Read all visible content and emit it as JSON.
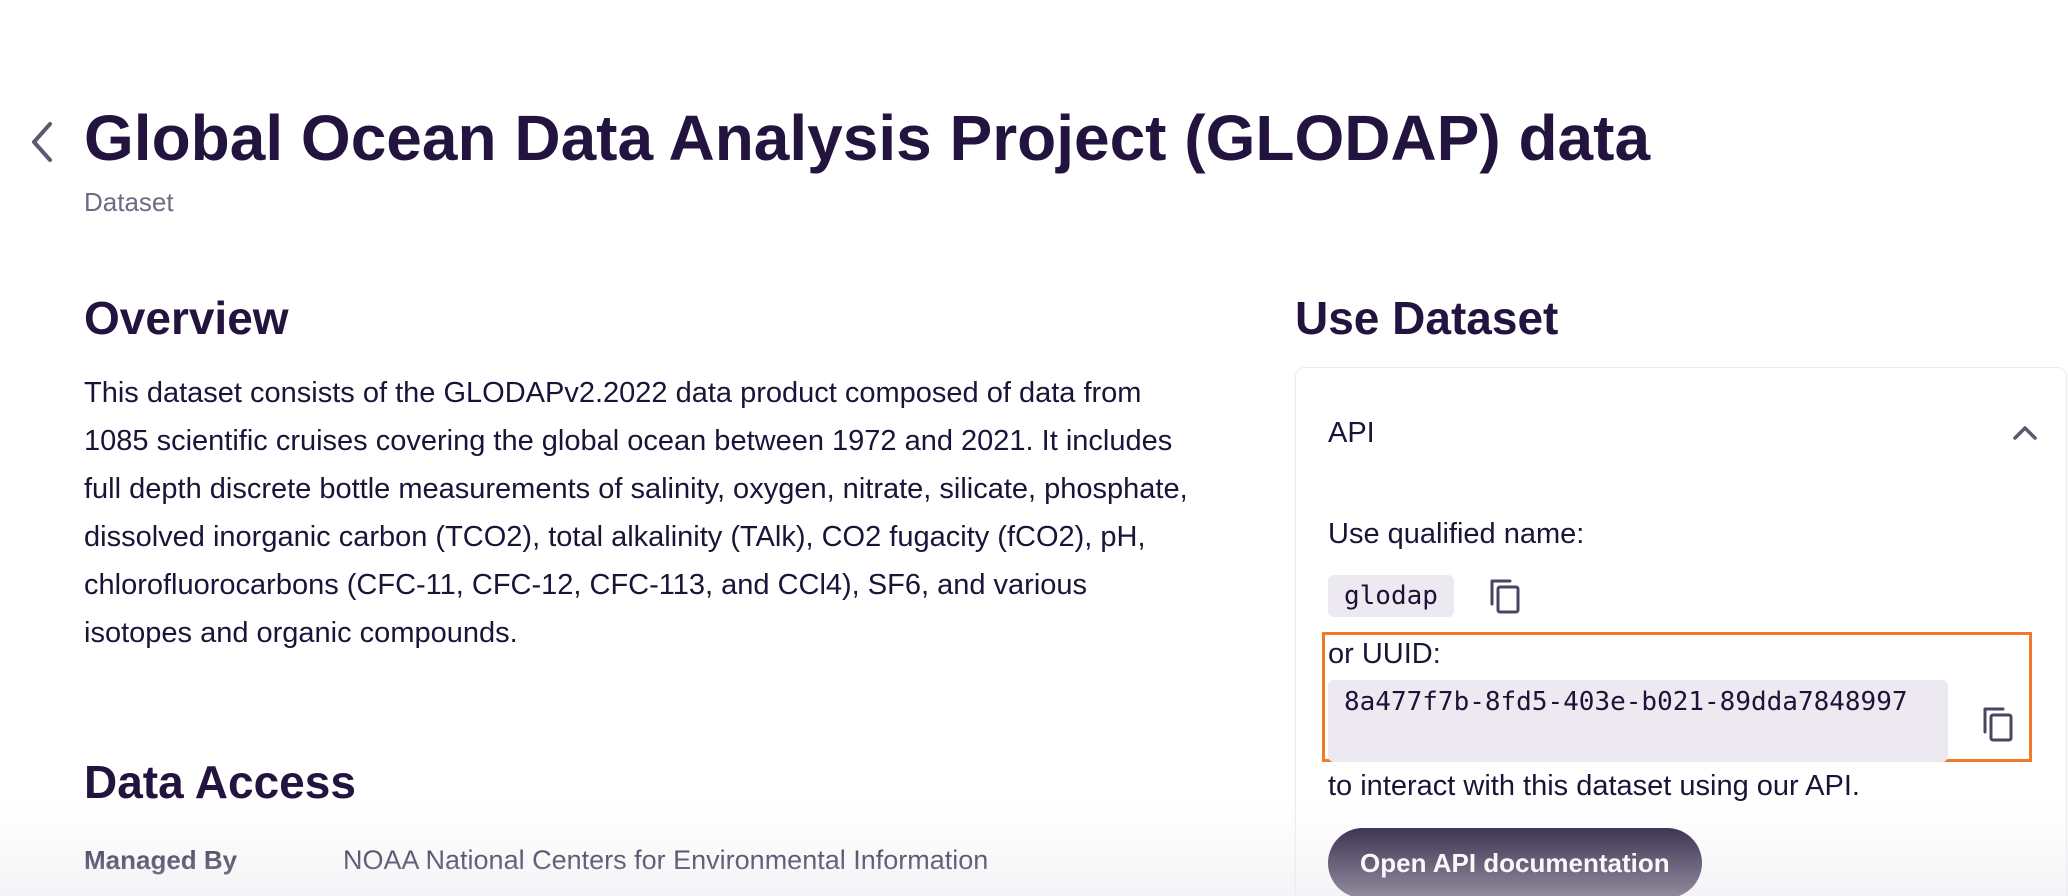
{
  "header": {
    "title": "Global Ocean Data Analysis Project (GLODAP) data",
    "subtitle": "Dataset"
  },
  "overview": {
    "heading": "Overview",
    "description": "This dataset consists of the GLODAPv2.2022 data product composed of data from 1085 scientific cruises covering the global ocean between 1972 and 2021. It includes full depth discrete bottle measurements of salinity, oxygen, nitrate, silicate, phosphate, dissolved inorganic carbon (TCO2), total alkalinity (TAlk), CO2 fugacity (fCO2), pH, chlorofluorocarbons (CFC-11, CFC-12, CFC-113, and CCl4), SF6, and various isotopes and organic compounds."
  },
  "data_access": {
    "heading": "Data Access",
    "managed_by_label": "Managed By",
    "managed_by_value": "NOAA National Centers for Environmental Information"
  },
  "use_dataset": {
    "heading": "Use Dataset",
    "api_section_label": "API",
    "qualified_name_label": "Use qualified name:",
    "qualified_name": "glodap",
    "uuid_label": "or UUID:",
    "uuid": "8a477f7b-8fd5-403e-b021-89dda7848997",
    "api_note": "to interact with this dataset using our API.",
    "api_doc_button": "Open API documentation"
  },
  "icons": {
    "back": "chevron-left-icon",
    "collapse": "chevron-up-icon",
    "copy": "copy-icon"
  },
  "colors": {
    "text": "#1d1238",
    "muted": "#6f6a82",
    "highlight": "#f07a2a",
    "button_bg": "#1f1236",
    "chip_bg": "#eceaf0"
  }
}
